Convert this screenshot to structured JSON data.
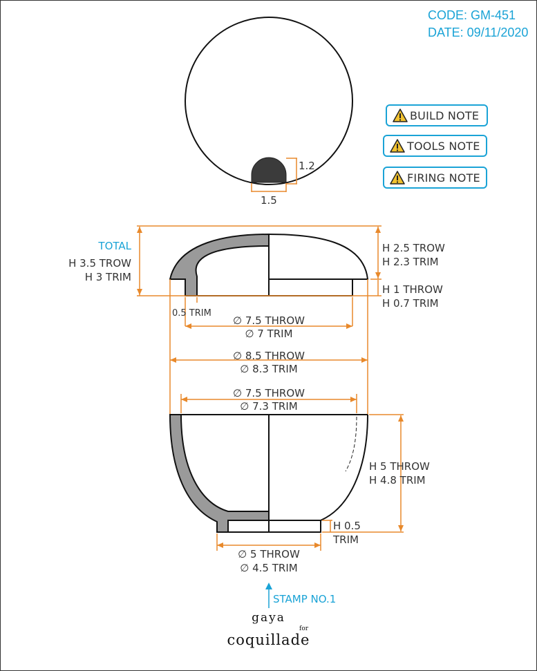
{
  "header": {
    "code": "CODE: GM-451",
    "date": "DATE: 09/11/2020"
  },
  "notes": [
    {
      "label": "BUILD NOTE"
    },
    {
      "label": "TOOLS NOTE"
    },
    {
      "label": "FIRING NOTE"
    }
  ],
  "knob_view": {
    "height_label": "1.2",
    "width_label": "1.5"
  },
  "lid": {
    "total_label": "TOTAL",
    "total_throw": "H 3.5 TROW",
    "total_trim": "H 3 TRIM",
    "dome_throw": "H 2.5 TROW",
    "dome_trim": "H 2.3 TRIM",
    "flange_throw": "H 1 THROW",
    "flange_trim": "H 0.7 TRIM",
    "wall_trim": "0.5 TRIM",
    "inner_dia_throw": "∅ 7.5 THROW",
    "inner_dia_trim": "∅ 7 TRIM"
  },
  "shared": {
    "dia_throw": "∅ 8.5 THROW",
    "dia_trim": "∅ 8.3 TRIM"
  },
  "cup": {
    "rim_dia_throw": "∅ 7.5 THROW",
    "rim_dia_trim": "∅ 7.3 TRIM",
    "height_throw": "H 5 THROW",
    "height_trim": "H 4.8 TRIM",
    "foot_height": "H 0.5",
    "foot_trim": "TRIM",
    "foot_dia_throw": "∅ 5 THROW",
    "foot_dia_trim": "∅ 4.5 TRIM"
  },
  "stamp": {
    "label": "STAMP NO.1"
  },
  "brand": {
    "top": "gaya",
    "small": "for",
    "bottom": "coquillade"
  },
  "colors": {
    "dimension": "#e8892b",
    "accent": "#1aa3d6",
    "section_fill": "#9a9a9a",
    "outline": "#111111"
  }
}
